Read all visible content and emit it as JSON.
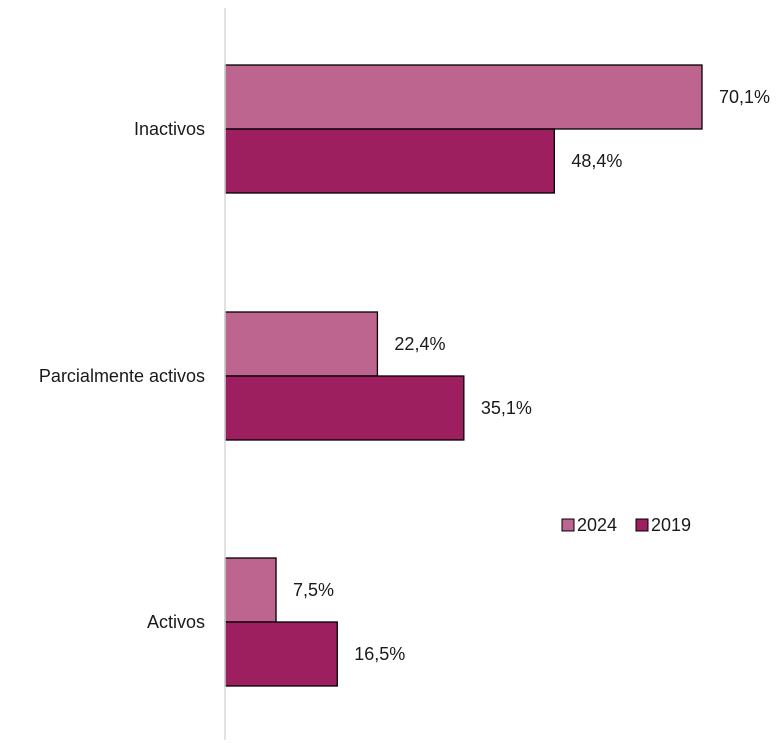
{
  "chart_data": {
    "type": "bar",
    "orientation": "horizontal",
    "categories": [
      "Inactivos",
      "Parcialmente activos",
      "Activos"
    ],
    "series": [
      {
        "name": "2024",
        "values": [
          70.1,
          22.4,
          7.5
        ],
        "labels": [
          "70,1%",
          "22,4%",
          "7,5%"
        ],
        "color": "#bd648f"
      },
      {
        "name": "2019",
        "values": [
          48.4,
          35.1,
          16.5
        ],
        "labels": [
          "48,4%",
          "35,1%",
          "16,5%"
        ],
        "color": "#9e1f5f"
      }
    ],
    "xlim": [
      0,
      75
    ],
    "grid": false,
    "legend_position": "right",
    "axis_color": "#d9d9d9",
    "bar_stroke": "#000000"
  }
}
